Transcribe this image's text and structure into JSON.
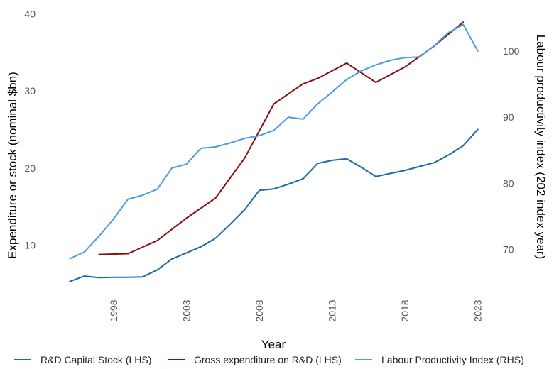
{
  "chart_data": {
    "type": "line",
    "xlabel": "Year",
    "ylabel_left": "Expenditure or stock (nominal $bn)",
    "ylabel_right": "Labour productivity index (202 index year)",
    "x_ticks": [
      1998,
      2003,
      2008,
      2013,
      2018,
      2023
    ],
    "y_left_ticks": [
      10,
      20,
      30,
      40
    ],
    "y_right_ticks": [
      70,
      80,
      90,
      100
    ],
    "xlim": [
      1994.5,
      2023.5
    ],
    "ylim_left": [
      3.8,
      40.3
    ],
    "ylim_right": [
      63.4,
      106
    ],
    "grid": false,
    "legend_position": "bottom",
    "series": [
      {
        "name": "R&D Capital Stock (LHS)",
        "axis": "left",
        "color": "#1a6aa8",
        "x": [
          1995,
          1996,
          1997,
          1998,
          1999,
          2000,
          2001,
          2002,
          2003,
          2004,
          2005,
          2006,
          2007,
          2008,
          2009,
          2010,
          2011,
          2012,
          2013,
          2014,
          2015,
          2016,
          2017,
          2018,
          2019,
          2020,
          2021,
          2022,
          2023
        ],
        "y": [
          5.3,
          6.0,
          5.8,
          5.85,
          5.85,
          5.9,
          6.8,
          8.2,
          9.0,
          9.8,
          10.9,
          12.7,
          14.6,
          17.1,
          17.3,
          17.9,
          18.6,
          20.6,
          21.0,
          21.2,
          20.1,
          18.9,
          19.3,
          19.7,
          20.2,
          20.7,
          21.7,
          22.9,
          25.0
        ]
      },
      {
        "name": "Gross expenditure on R&D (LHS)",
        "axis": "left",
        "color": "#8b0c0c",
        "x": [
          1997,
          1999,
          2001,
          2003,
          2005,
          2007,
          2009,
          2011,
          2012,
          2014,
          2016,
          2018,
          2020,
          2022
        ],
        "y": [
          8.8,
          8.9,
          10.6,
          13.5,
          16.1,
          21.3,
          28.3,
          30.9,
          31.6,
          33.6,
          31.1,
          33.1,
          35.8,
          38.9
        ]
      },
      {
        "name": "Labour Productivity Index (RHS)",
        "axis": "right",
        "color": "#4d9de0",
        "x": [
          1995,
          1996,
          1997,
          1998,
          1999,
          2000,
          2001,
          2002,
          2003,
          2004,
          2005,
          2006,
          2007,
          2008,
          2009,
          2010,
          2011,
          2012,
          2013,
          2014,
          2015,
          2016,
          2017,
          2018,
          2019,
          2020,
          2021,
          2022,
          2023
        ],
        "y": [
          68.6,
          69.6,
          72.0,
          74.6,
          77.6,
          78.2,
          79.1,
          82.3,
          82.9,
          85.3,
          85.5,
          86.1,
          86.8,
          87.2,
          88.0,
          90.0,
          89.7,
          92.0,
          93.8,
          95.7,
          97.0,
          97.9,
          98.6,
          99.0,
          99.1,
          100.8,
          102.8,
          104.0,
          100.0
        ]
      }
    ]
  }
}
